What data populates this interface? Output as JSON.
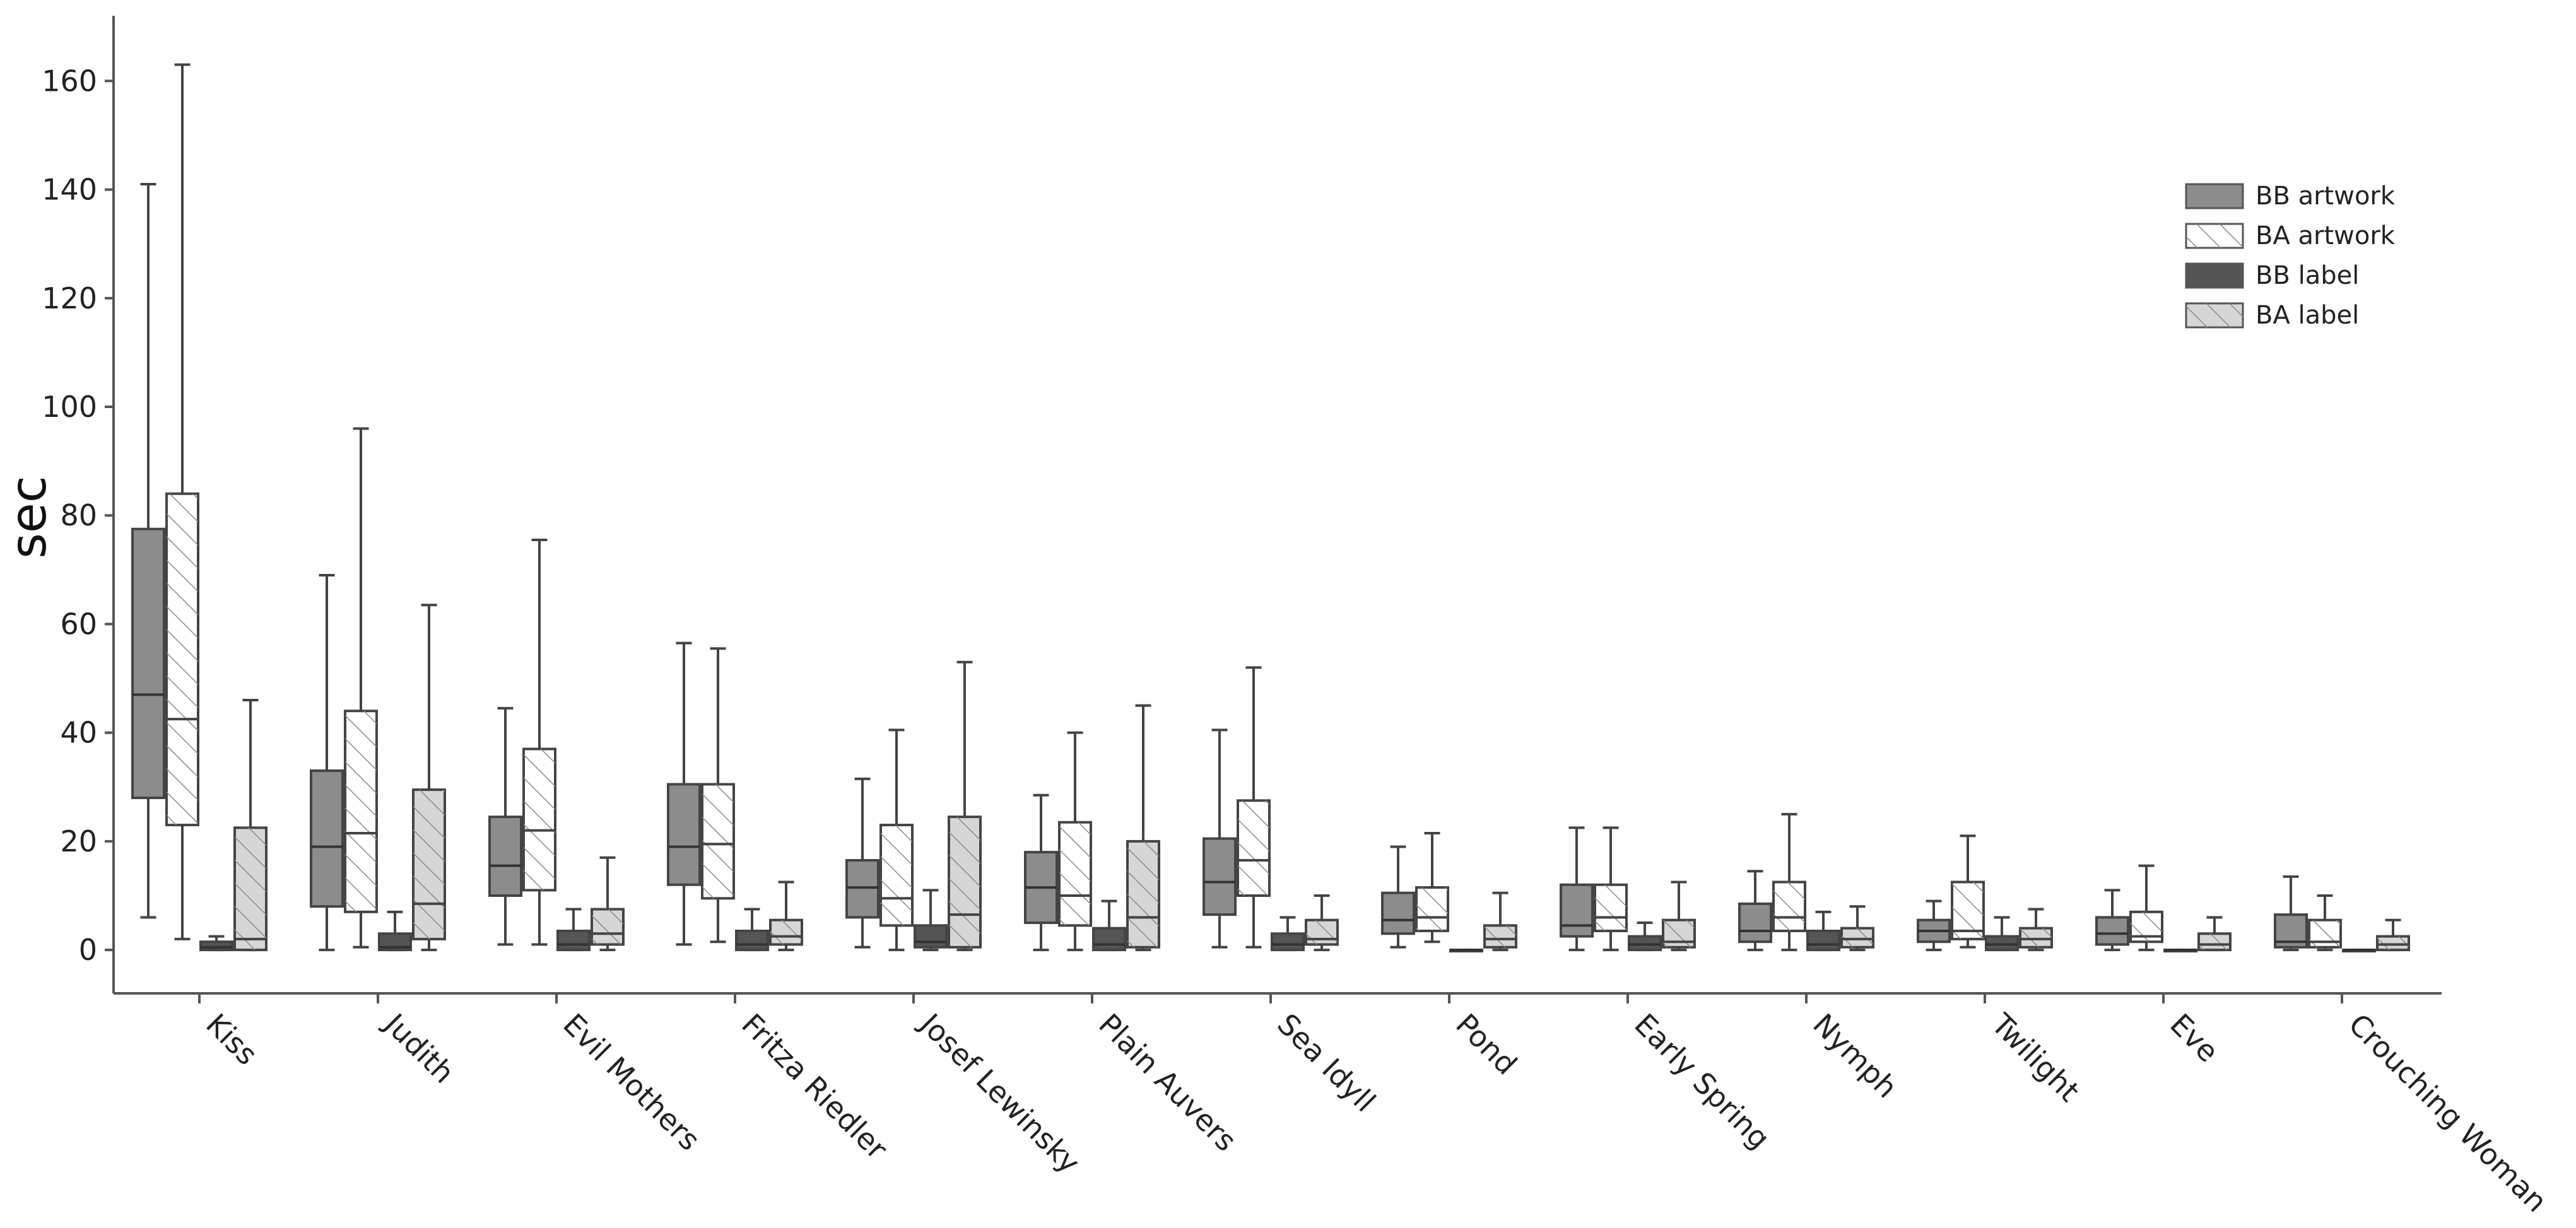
{
  "chart_data": {
    "type": "boxplot",
    "title": "",
    "xlabel": "",
    "ylabel": "sec",
    "ylim": [
      -8,
      172
    ],
    "yticks": [
      0,
      20,
      40,
      60,
      80,
      100,
      120,
      140,
      160
    ],
    "legend_position": "top-right",
    "categories": [
      "Kiss",
      "Judith",
      "Evil Mothers",
      "Fritza Riedler",
      "Josef Lewinsky",
      "Plain Auvers",
      "Sea Idyll",
      "Pond",
      "Early Spring",
      "Nymph",
      "Twilight",
      "Eve",
      "Crouching Woman"
    ],
    "series": [
      {
        "name": "BB artwork",
        "fill": "#8c8c8c",
        "hatch": false,
        "boxes": [
          {
            "min": 6,
            "q1": 28,
            "median": 47,
            "q3": 77.5,
            "max": 141
          },
          {
            "min": 0,
            "q1": 8,
            "median": 19,
            "q3": 33,
            "max": 69
          },
          {
            "min": 1,
            "q1": 10,
            "median": 15.5,
            "q3": 24.5,
            "max": 44.5
          },
          {
            "min": 1,
            "q1": 12,
            "median": 19,
            "q3": 30.5,
            "max": 56.5
          },
          {
            "min": 0.5,
            "q1": 6,
            "median": 11.5,
            "q3": 16.5,
            "max": 31.5
          },
          {
            "min": 0,
            "q1": 5,
            "median": 11.5,
            "q3": 18,
            "max": 28.5
          },
          {
            "min": 0.5,
            "q1": 6.5,
            "median": 12.5,
            "q3": 20.5,
            "max": 40.5
          },
          {
            "min": 0.5,
            "q1": 3,
            "median": 5.5,
            "q3": 10.5,
            "max": 19
          },
          {
            "min": 0,
            "q1": 2.5,
            "median": 4.5,
            "q3": 12,
            "max": 22.5
          },
          {
            "min": 0,
            "q1": 1.5,
            "median": 3.5,
            "q3": 8.5,
            "max": 14.5
          },
          {
            "min": 0,
            "q1": 1.5,
            "median": 3.5,
            "q3": 5.5,
            "max": 9
          },
          {
            "min": 0,
            "q1": 1,
            "median": 3,
            "q3": 6,
            "max": 11
          },
          {
            "min": 0,
            "q1": 0.5,
            "median": 1.5,
            "q3": 6.5,
            "max": 13.5
          }
        ]
      },
      {
        "name": "BA artwork",
        "fill": "#ffffff",
        "hatch": true,
        "boxes": [
          {
            "min": 2,
            "q1": 23,
            "median": 42.5,
            "q3": 84,
            "max": 163
          },
          {
            "min": 0.5,
            "q1": 7,
            "median": 21.5,
            "q3": 44,
            "max": 96
          },
          {
            "min": 1,
            "q1": 11,
            "median": 22,
            "q3": 37,
            "max": 75.5
          },
          {
            "min": 1.5,
            "q1": 9.5,
            "median": 19.5,
            "q3": 30.5,
            "max": 55.5
          },
          {
            "min": 0,
            "q1": 4.5,
            "median": 9.5,
            "q3": 23,
            "max": 40.5
          },
          {
            "min": 0,
            "q1": 4.5,
            "median": 10,
            "q3": 23.5,
            "max": 40
          },
          {
            "min": 0.5,
            "q1": 10,
            "median": 16.5,
            "q3": 27.5,
            "max": 52
          },
          {
            "min": 1.5,
            "q1": 3.5,
            "median": 6,
            "q3": 11.5,
            "max": 21.5
          },
          {
            "min": 0,
            "q1": 3.5,
            "median": 6,
            "q3": 12,
            "max": 22.5
          },
          {
            "min": 0,
            "q1": 3.5,
            "median": 6,
            "q3": 12.5,
            "max": 25
          },
          {
            "min": 0.5,
            "q1": 2,
            "median": 3.5,
            "q3": 12.5,
            "max": 21
          },
          {
            "min": 0,
            "q1": 1.5,
            "median": 2.5,
            "q3": 7,
            "max": 15.5
          },
          {
            "min": 0,
            "q1": 0.5,
            "median": 1.5,
            "q3": 5.5,
            "max": 10
          }
        ]
      },
      {
        "name": "BB label",
        "fill": "#555555",
        "hatch": false,
        "boxes": [
          {
            "min": 0,
            "q1": 0,
            "median": 0.5,
            "q3": 1.5,
            "max": 2.5
          },
          {
            "min": 0,
            "q1": 0,
            "median": 0.5,
            "q3": 3,
            "max": 7
          },
          {
            "min": 0,
            "q1": 0,
            "median": 1,
            "q3": 3.5,
            "max": 7.5
          },
          {
            "min": 0,
            "q1": 0,
            "median": 1,
            "q3": 3.5,
            "max": 7.5
          },
          {
            "min": 0,
            "q1": 0.5,
            "median": 1.5,
            "q3": 4.5,
            "max": 11
          },
          {
            "min": 0,
            "q1": 0,
            "median": 1,
            "q3": 4,
            "max": 9
          },
          {
            "min": 0,
            "q1": 0,
            "median": 1,
            "q3": 3,
            "max": 6
          },
          {
            "min": 0,
            "q1": 0,
            "median": 0,
            "q3": 0,
            "max": 0
          },
          {
            "min": 0,
            "q1": 0,
            "median": 1,
            "q3": 2.5,
            "max": 5
          },
          {
            "min": 0,
            "q1": 0,
            "median": 1,
            "q3": 3.5,
            "max": 7
          },
          {
            "min": 0,
            "q1": 0,
            "median": 1,
            "q3": 2.5,
            "max": 6
          },
          {
            "min": 0,
            "q1": 0,
            "median": 0,
            "q3": 0,
            "max": 0
          },
          {
            "min": 0,
            "q1": 0,
            "median": 0,
            "q3": 0,
            "max": 0
          }
        ]
      },
      {
        "name": "BA label",
        "fill": "#d6d6d6",
        "hatch": true,
        "boxes": [
          {
            "min": 0,
            "q1": 0,
            "median": 2,
            "q3": 22.5,
            "max": 46
          },
          {
            "min": 0,
            "q1": 2,
            "median": 8.5,
            "q3": 29.5,
            "max": 63.5
          },
          {
            "min": 0,
            "q1": 1,
            "median": 3,
            "q3": 7.5,
            "max": 17
          },
          {
            "min": 0,
            "q1": 1,
            "median": 2.5,
            "q3": 5.5,
            "max": 12.5
          },
          {
            "min": 0,
            "q1": 0.5,
            "median": 6.5,
            "q3": 24.5,
            "max": 53
          },
          {
            "min": 0,
            "q1": 0.5,
            "median": 6,
            "q3": 20,
            "max": 45
          },
          {
            "min": 0,
            "q1": 1,
            "median": 2,
            "q3": 5.5,
            "max": 10
          },
          {
            "min": 0,
            "q1": 0.5,
            "median": 2,
            "q3": 4.5,
            "max": 10.5
          },
          {
            "min": 0,
            "q1": 0.5,
            "median": 1.5,
            "q3": 5.5,
            "max": 12.5
          },
          {
            "min": 0,
            "q1": 0.5,
            "median": 2,
            "q3": 4,
            "max": 8
          },
          {
            "min": 0,
            "q1": 0.5,
            "median": 2,
            "q3": 4,
            "max": 7.5
          },
          {
            "min": 0,
            "q1": 0,
            "median": 1,
            "q3": 3,
            "max": 6
          },
          {
            "min": 0,
            "q1": 0,
            "median": 1,
            "q3": 2.5,
            "max": 5.5
          }
        ]
      }
    ]
  }
}
